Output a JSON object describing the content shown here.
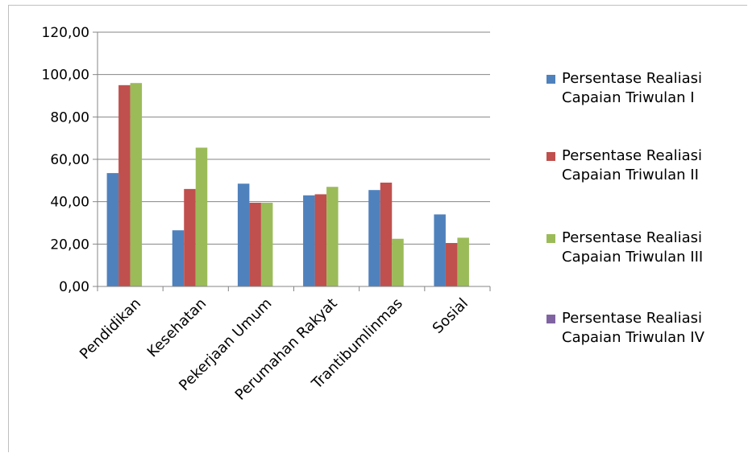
{
  "chart_data": {
    "type": "bar",
    "title": "",
    "xlabel": "",
    "ylabel": "",
    "categories": [
      "Pendidikan",
      "Kesehatan",
      "Pekerjaan Umum",
      "Perumahan Rakyat",
      "Trantibumlinmas",
      "Sosial"
    ],
    "yticks": [
      "0,00",
      "20,00",
      "40,00",
      "60,00",
      "80,00",
      "100,00",
      "120,00"
    ],
    "ylim": [
      0,
      120
    ],
    "grid": true,
    "legend_position": "right",
    "series": [
      {
        "name": "Persentase Realiasi Capaian  Triwulan I",
        "color": "#4f81bd",
        "values": [
          53.5,
          26.5,
          48.5,
          43.0,
          45.5,
          34.0
        ]
      },
      {
        "name": "Persentase Realiasi Capaian  Triwulan II",
        "color": "#c0504d",
        "values": [
          95.0,
          46.0,
          39.5,
          43.5,
          49.0,
          20.5
        ]
      },
      {
        "name": "Persentase Realiasi Capaian  Triwulan III",
        "color": "#9bbb59",
        "values": [
          96.0,
          65.5,
          39.5,
          47.0,
          22.5,
          23.0
        ]
      },
      {
        "name": "Persentase Realiasi Capaian  Triwulan IV",
        "color": "#8064a2",
        "values": [
          0,
          0,
          0,
          0,
          0,
          0
        ]
      }
    ]
  }
}
